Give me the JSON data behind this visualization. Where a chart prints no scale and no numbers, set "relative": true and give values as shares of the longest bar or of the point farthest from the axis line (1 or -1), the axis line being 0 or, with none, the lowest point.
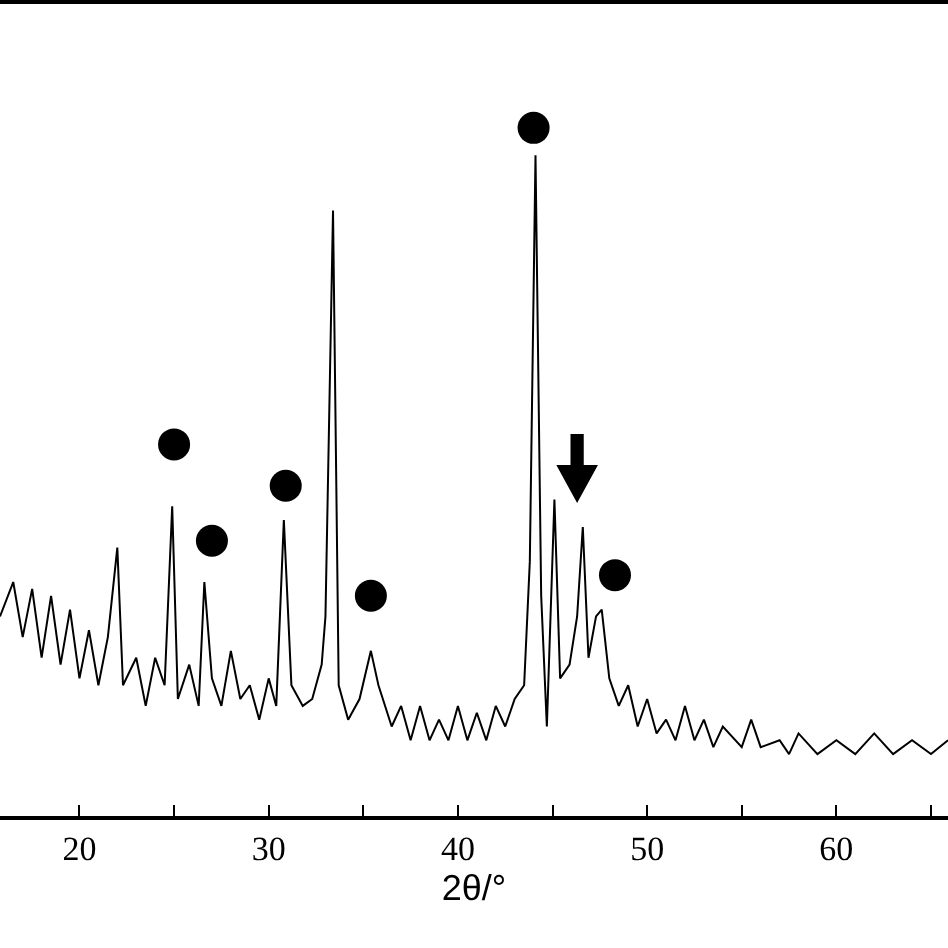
{
  "chart_data": {
    "type": "line",
    "xlabel": "2θ/°",
    "relative": true,
    "xlim": [
      15.8,
      65.9
    ],
    "xticks": [
      20,
      {
        "value": 25,
        "label": null
      },
      30,
      {
        "value": 35,
        "label": null
      },
      40,
      {
        "value": 45,
        "label": null
      },
      50,
      {
        "value": 55,
        "label": null
      },
      60,
      {
        "value": 65,
        "label": null
      }
    ],
    "series": [
      {
        "color": "#000000",
        "marker": "none",
        "line_style": "solid",
        "x": [
          15.8,
          16.5,
          17,
          17.5,
          18,
          18.5,
          19,
          19.5,
          20,
          20.5,
          21,
          21.5,
          22.0,
          22.3,
          23,
          23.5,
          24,
          24.5,
          24.9,
          25.2,
          25.8,
          26.3,
          26.6,
          27,
          27.5,
          28,
          28.5,
          29,
          29.5,
          30,
          30.4,
          30.8,
          31.2,
          31.8,
          32.3,
          32.8,
          33.0,
          33.4,
          33.7,
          34.2,
          34.8,
          35.4,
          35.8,
          36.5,
          37,
          37.5,
          38,
          38.5,
          39,
          39.5,
          40,
          40.5,
          41,
          41.5,
          42,
          42.5,
          43,
          43.5,
          43.8,
          44.1,
          44.4,
          44.7,
          45.1,
          45.4,
          45.9,
          46.3,
          46.6,
          46.9,
          47.3,
          47.6,
          48,
          48.5,
          49,
          49.5,
          50,
          50.5,
          51,
          51.5,
          52,
          52.5,
          53,
          53.5,
          54,
          55,
          55.5,
          56,
          57,
          57.5,
          58,
          59,
          60,
          61,
          62,
          63,
          64,
          65,
          65.9
        ],
        "values": [
          0.29,
          0.34,
          0.26,
          0.33,
          0.23,
          0.32,
          0.22,
          0.3,
          0.2,
          0.27,
          0.19,
          0.26,
          0.39,
          0.19,
          0.23,
          0.16,
          0.23,
          0.19,
          0.45,
          0.17,
          0.22,
          0.16,
          0.34,
          0.2,
          0.16,
          0.24,
          0.17,
          0.19,
          0.14,
          0.2,
          0.16,
          0.43,
          0.19,
          0.16,
          0.17,
          0.22,
          0.29,
          0.88,
          0.19,
          0.14,
          0.17,
          0.24,
          0.19,
          0.13,
          0.16,
          0.11,
          0.16,
          0.11,
          0.14,
          0.11,
          0.16,
          0.11,
          0.15,
          0.11,
          0.16,
          0.13,
          0.17,
          0.19,
          0.37,
          0.96,
          0.32,
          0.13,
          0.46,
          0.2,
          0.22,
          0.29,
          0.42,
          0.23,
          0.29,
          0.3,
          0.2,
          0.16,
          0.19,
          0.13,
          0.17,
          0.12,
          0.14,
          0.11,
          0.16,
          0.11,
          0.14,
          0.1,
          0.13,
          0.1,
          0.14,
          0.1,
          0.11,
          0.09,
          0.12,
          0.09,
          0.11,
          0.09,
          0.12,
          0.09,
          0.11,
          0.09,
          0.11
        ]
      },
      {
        "type": "scatter",
        "color": "#000000",
        "marker": "circle",
        "x": [
          25.0,
          27.0,
          30.9,
          35.4,
          44.0,
          48.3
        ],
        "values": [
          0.54,
          0.4,
          0.48,
          0.32,
          1.0,
          0.35
        ]
      }
    ]
  }
}
